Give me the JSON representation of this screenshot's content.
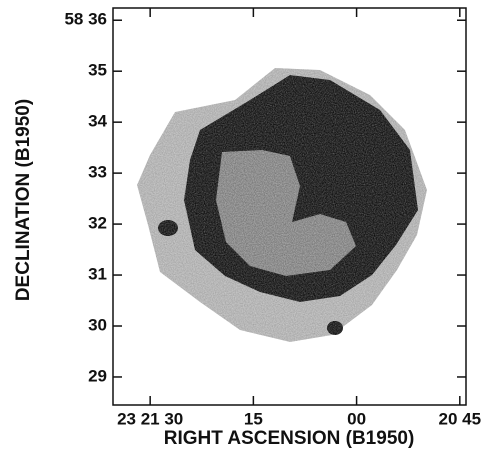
{
  "chart_data": {
    "type": "image",
    "xlabel": "RIGHT ASCENSION (B1950)",
    "ylabel": "DECLINATION (B1950)",
    "xlim": [
      95.4,
      44.1
    ],
    "xticks": [
      {
        "value": 90,
        "label": "23 21 30"
      },
      {
        "value": 75,
        "label": "15"
      },
      {
        "value": 60,
        "label": "00"
      },
      {
        "value": 45,
        "label": "20 45"
      }
    ],
    "ylim": [
      28.45,
      36.24
    ],
    "yticks": [
      {
        "value": 36,
        "label": "58 36"
      },
      {
        "value": 35,
        "label": "35"
      },
      {
        "value": 34,
        "label": "34"
      },
      {
        "value": 33,
        "label": "33"
      },
      {
        "value": 32,
        "label": "32"
      },
      {
        "value": 31,
        "label": "31"
      },
      {
        "value": 30,
        "label": "30"
      },
      {
        "value": 29,
        "label": "29"
      }
    ]
  }
}
